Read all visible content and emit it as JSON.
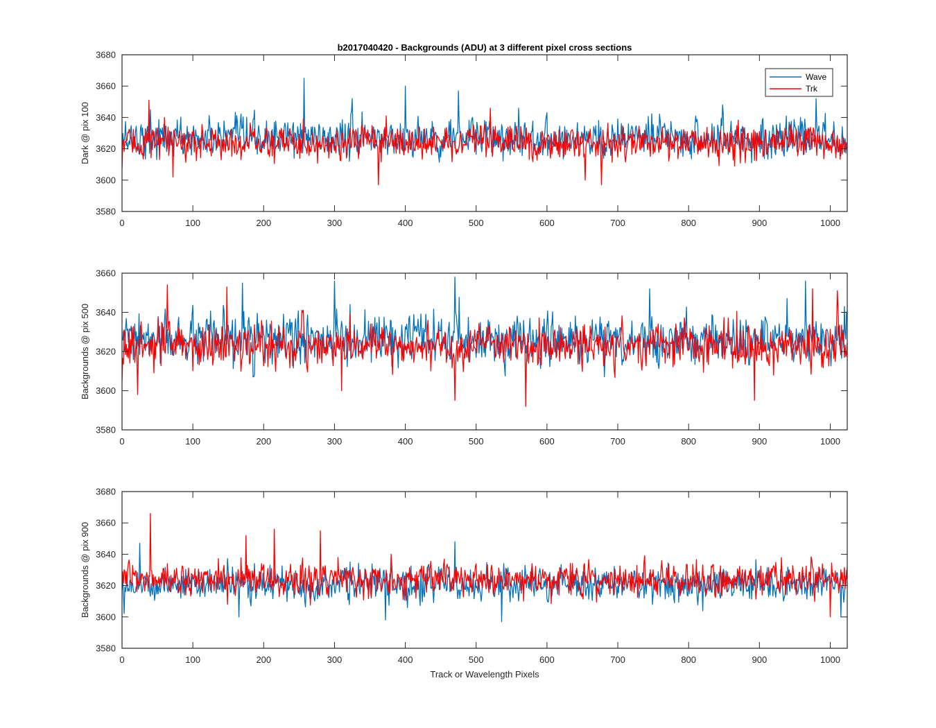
{
  "chart_data": {
    "type": "line",
    "title": "b2017040420 - Backgrounds (ADU) at 3 different pixel cross sections",
    "xlabel": "Track or Wavelength Pixels",
    "legend": {
      "placement": "top-right",
      "entries": [
        "Wave",
        "Trk"
      ]
    },
    "colors": {
      "Wave": "#0072BD",
      "Trk": "#FF0000"
    },
    "x_range": [
      0,
      1024
    ],
    "xticks": [
      0,
      100,
      200,
      300,
      400,
      500,
      600,
      700,
      800,
      900,
      1000
    ],
    "panels": [
      {
        "ylabel": "Dark @ pix 100",
        "ylim": [
          3580,
          3680
        ],
        "yticks": [
          3580,
          3600,
          3620,
          3640,
          3660,
          3680
        ],
        "series": [
          {
            "name": "Wave",
            "mean": 3627,
            "spread": 7,
            "peaks": [
              [
                0,
                3608
              ],
              [
                40,
                3645
              ],
              [
                257,
                3665
              ],
              [
                325,
                3652
              ],
              [
                400,
                3660
              ],
              [
                475,
                3657
              ],
              [
                560,
                3646
              ],
              [
                848,
                3648
              ],
              [
                980,
                3652
              ]
            ]
          },
          {
            "name": "Trk",
            "mean": 3624,
            "spread": 6,
            "peaks": [
              [
                0,
                3608
              ],
              [
                38,
                3651
              ],
              [
                72,
                3602
              ],
              [
                362,
                3597
              ],
              [
                373,
                3641
              ],
              [
                520,
                3646
              ],
              [
                654,
                3600
              ],
              [
                677,
                3597
              ]
            ]
          }
        ]
      },
      {
        "ylabel": "Backgrounds @ pix 500",
        "ylim": [
          3580,
          3660
        ],
        "yticks": [
          3580,
          3600,
          3620,
          3640,
          3660
        ],
        "series": [
          {
            "name": "Wave",
            "mean": 3626,
            "spread": 7,
            "peaks": [
              [
                170,
                3655
              ],
              [
                300,
                3656
              ],
              [
                470,
                3658
              ],
              [
                745,
                3652
              ],
              [
                965,
                3656
              ],
              [
                1020,
                3643
              ]
            ]
          },
          {
            "name": "Trk",
            "mean": 3623,
            "spread": 6,
            "peaks": [
              [
                0,
                3605
              ],
              [
                22,
                3598
              ],
              [
                64,
                3654
              ],
              [
                148,
                3653
              ],
              [
                310,
                3600
              ],
              [
                470,
                3595
              ],
              [
                570,
                3592
              ],
              [
                893,
                3595
              ],
              [
                975,
                3652
              ],
              [
                1010,
                3651
              ]
            ]
          }
        ]
      },
      {
        "ylabel": "Backgrounds @ pix 900",
        "ylim": [
          3580,
          3680
        ],
        "yticks": [
          3580,
          3600,
          3620,
          3640,
          3660,
          3680
        ],
        "series": [
          {
            "name": "Wave",
            "mean": 3621,
            "spread": 6,
            "peaks": [
              [
                25,
                3647
              ],
              [
                165,
                3600
              ],
              [
                372,
                3598
              ],
              [
                470,
                3648
              ],
              [
                536,
                3597
              ],
              [
                1015,
                3600
              ]
            ]
          },
          {
            "name": "Trk",
            "mean": 3624,
            "spread": 6,
            "peaks": [
              [
                40,
                3666
              ],
              [
                175,
                3652
              ],
              [
                215,
                3656
              ],
              [
                280,
                3655
              ],
              [
                380,
                3640
              ],
              [
                1000,
                3600
              ]
            ]
          }
        ]
      }
    ]
  }
}
